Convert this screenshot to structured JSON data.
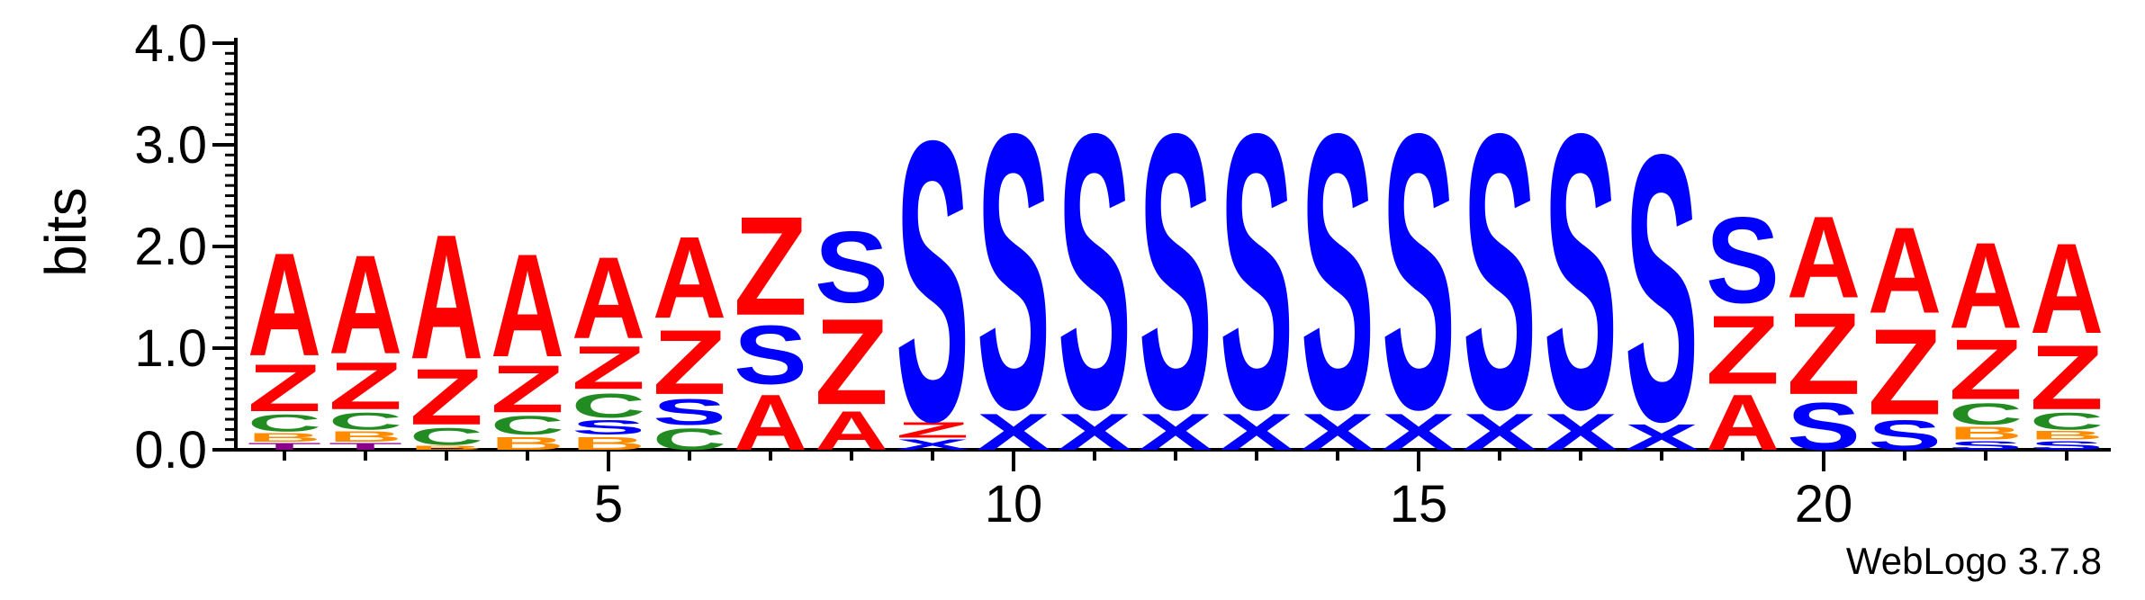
{
  "chart_data": {
    "type": "sequence-logo",
    "ylabel": "bits",
    "ylim": [
      0,
      4.0
    ],
    "yticks": [
      "0.0",
      "1.0",
      "2.0",
      "3.0",
      "4.0"
    ],
    "xticks": [
      5,
      10,
      15,
      20
    ],
    "colors": {
      "A": "#ff0000",
      "Z": "#ff0000",
      "S": "#0000ff",
      "X": "#0000ff",
      "C": "#228b22",
      "B": "#ff8c00",
      "T": "#8b008b"
    },
    "positions": [
      {
        "pos": 1,
        "stack": [
          [
            "T",
            0.08
          ],
          [
            "B",
            0.1
          ],
          [
            "C",
            0.2
          ],
          [
            "Z",
            0.55
          ],
          [
            "A",
            1.2
          ]
        ]
      },
      {
        "pos": 2,
        "stack": [
          [
            "T",
            0.08
          ],
          [
            "B",
            0.12
          ],
          [
            "C",
            0.2
          ],
          [
            "Z",
            0.55
          ],
          [
            "A",
            1.15
          ]
        ]
      },
      {
        "pos": 3,
        "stack": [
          [
            "B",
            0.05
          ],
          [
            "C",
            0.2
          ],
          [
            "Z",
            0.65
          ],
          [
            "A",
            1.45
          ]
        ]
      },
      {
        "pos": 4,
        "stack": [
          [
            "B",
            0.15
          ],
          [
            "C",
            0.22
          ],
          [
            "Z",
            0.55
          ],
          [
            "A",
            1.2
          ]
        ]
      },
      {
        "pos": 5,
        "stack": [
          [
            "B",
            0.15
          ],
          [
            "S",
            0.17
          ],
          [
            "C",
            0.28
          ],
          [
            "Z",
            0.5
          ],
          [
            "A",
            0.95
          ]
        ]
      },
      {
        "pos": 6,
        "stack": [
          [
            "C",
            0.25
          ],
          [
            "S",
            0.3
          ],
          [
            "Z",
            0.75
          ],
          [
            "A",
            0.95
          ]
        ]
      },
      {
        "pos": 7,
        "stack": [
          [
            "A",
            0.65
          ],
          [
            "S",
            0.68
          ],
          [
            "Z",
            1.15
          ]
        ]
      },
      {
        "pos": 8,
        "stack": [
          [
            "A",
            0.45
          ],
          [
            "Z",
            1.0
          ],
          [
            "S",
            0.83
          ]
        ]
      },
      {
        "pos": 9,
        "stack": [
          [
            "X",
            0.12
          ],
          [
            "Z",
            0.18
          ],
          [
            "S",
            3.26
          ]
        ]
      },
      {
        "pos": 10,
        "stack": [
          [
            "X",
            0.42
          ],
          [
            "S",
            3.2
          ]
        ]
      },
      {
        "pos": 11,
        "stack": [
          [
            "X",
            0.42
          ],
          [
            "S",
            3.2
          ]
        ]
      },
      {
        "pos": 12,
        "stack": [
          [
            "X",
            0.42
          ],
          [
            "S",
            3.2
          ]
        ]
      },
      {
        "pos": 13,
        "stack": [
          [
            "X",
            0.42
          ],
          [
            "S",
            3.2
          ]
        ]
      },
      {
        "pos": 14,
        "stack": [
          [
            "X",
            0.42
          ],
          [
            "S",
            3.2
          ]
        ]
      },
      {
        "pos": 15,
        "stack": [
          [
            "X",
            0.42
          ],
          [
            "S",
            3.2
          ]
        ]
      },
      {
        "pos": 16,
        "stack": [
          [
            "X",
            0.42
          ],
          [
            "S",
            3.2
          ]
        ]
      },
      {
        "pos": 17,
        "stack": [
          [
            "X",
            0.42
          ],
          [
            "S",
            3.2
          ]
        ]
      },
      {
        "pos": 18,
        "stack": [
          [
            "X",
            0.3
          ],
          [
            "S",
            3.1
          ]
        ]
      },
      {
        "pos": 19,
        "stack": [
          [
            "A",
            0.65
          ],
          [
            "Z",
            0.8
          ],
          [
            "S",
            1.0
          ]
        ]
      },
      {
        "pos": 20,
        "stack": [
          [
            "S",
            0.55
          ],
          [
            "Z",
            0.95
          ],
          [
            "A",
            0.95
          ]
        ]
      },
      {
        "pos": 21,
        "stack": [
          [
            "S",
            0.35
          ],
          [
            "Z",
            1.0
          ],
          [
            "A",
            1.0
          ]
        ]
      },
      {
        "pos": 22,
        "stack": [
          [
            "S",
            0.1
          ],
          [
            "B",
            0.15
          ],
          [
            "C",
            0.25
          ],
          [
            "Z",
            0.7
          ],
          [
            "A",
            1.0
          ]
        ]
      },
      {
        "pos": 23,
        "stack": [
          [
            "S",
            0.1
          ],
          [
            "B",
            0.1
          ],
          [
            "C",
            0.2
          ],
          [
            "Z",
            0.75
          ],
          [
            "A",
            1.05
          ]
        ]
      }
    ]
  },
  "credit": "WebLogo 3.7.8"
}
